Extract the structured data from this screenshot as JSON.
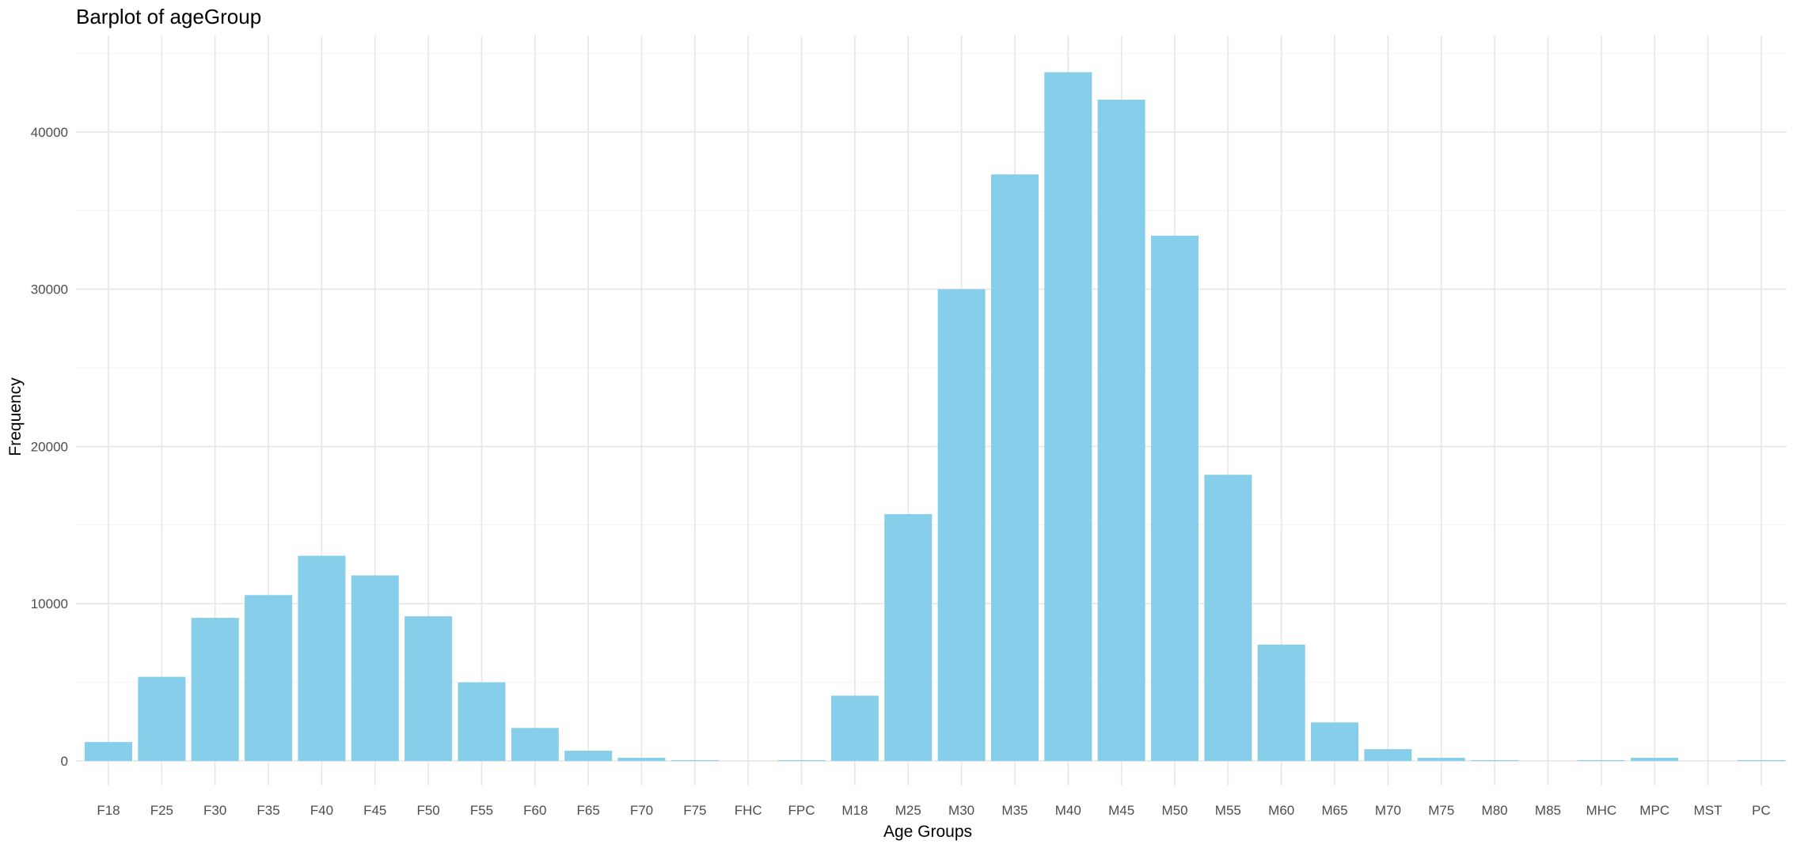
{
  "chart_data": {
    "type": "bar",
    "title": "Barplot of ageGroup",
    "xlabel": "Age Groups",
    "ylabel": "Frequency",
    "categories": [
      "F18",
      "F25",
      "F30",
      "F35",
      "F40",
      "F45",
      "F50",
      "F55",
      "F60",
      "F65",
      "F70",
      "F75",
      "FHC",
      "FPC",
      "M18",
      "M25",
      "M30",
      "M35",
      "M40",
      "M45",
      "M50",
      "M55",
      "M60",
      "M65",
      "M70",
      "M75",
      "M80",
      "M85",
      "MHC",
      "MPC",
      "MST",
      "PC"
    ],
    "values": [
      1200,
      5350,
      9100,
      10550,
      13050,
      11800,
      9200,
      5000,
      2100,
      650,
      200,
      50,
      0,
      50,
      4150,
      15700,
      30000,
      37300,
      43800,
      42050,
      33400,
      18200,
      7400,
      2450,
      750,
      200,
      50,
      0,
      50,
      200,
      0,
      50
    ],
    "yticks": [
      0,
      10000,
      20000,
      30000,
      40000
    ],
    "ylim": [
      0,
      46000
    ],
    "grid": true,
    "legend": "none",
    "bar_color": "#87CEEB",
    "theme": "minimal"
  }
}
